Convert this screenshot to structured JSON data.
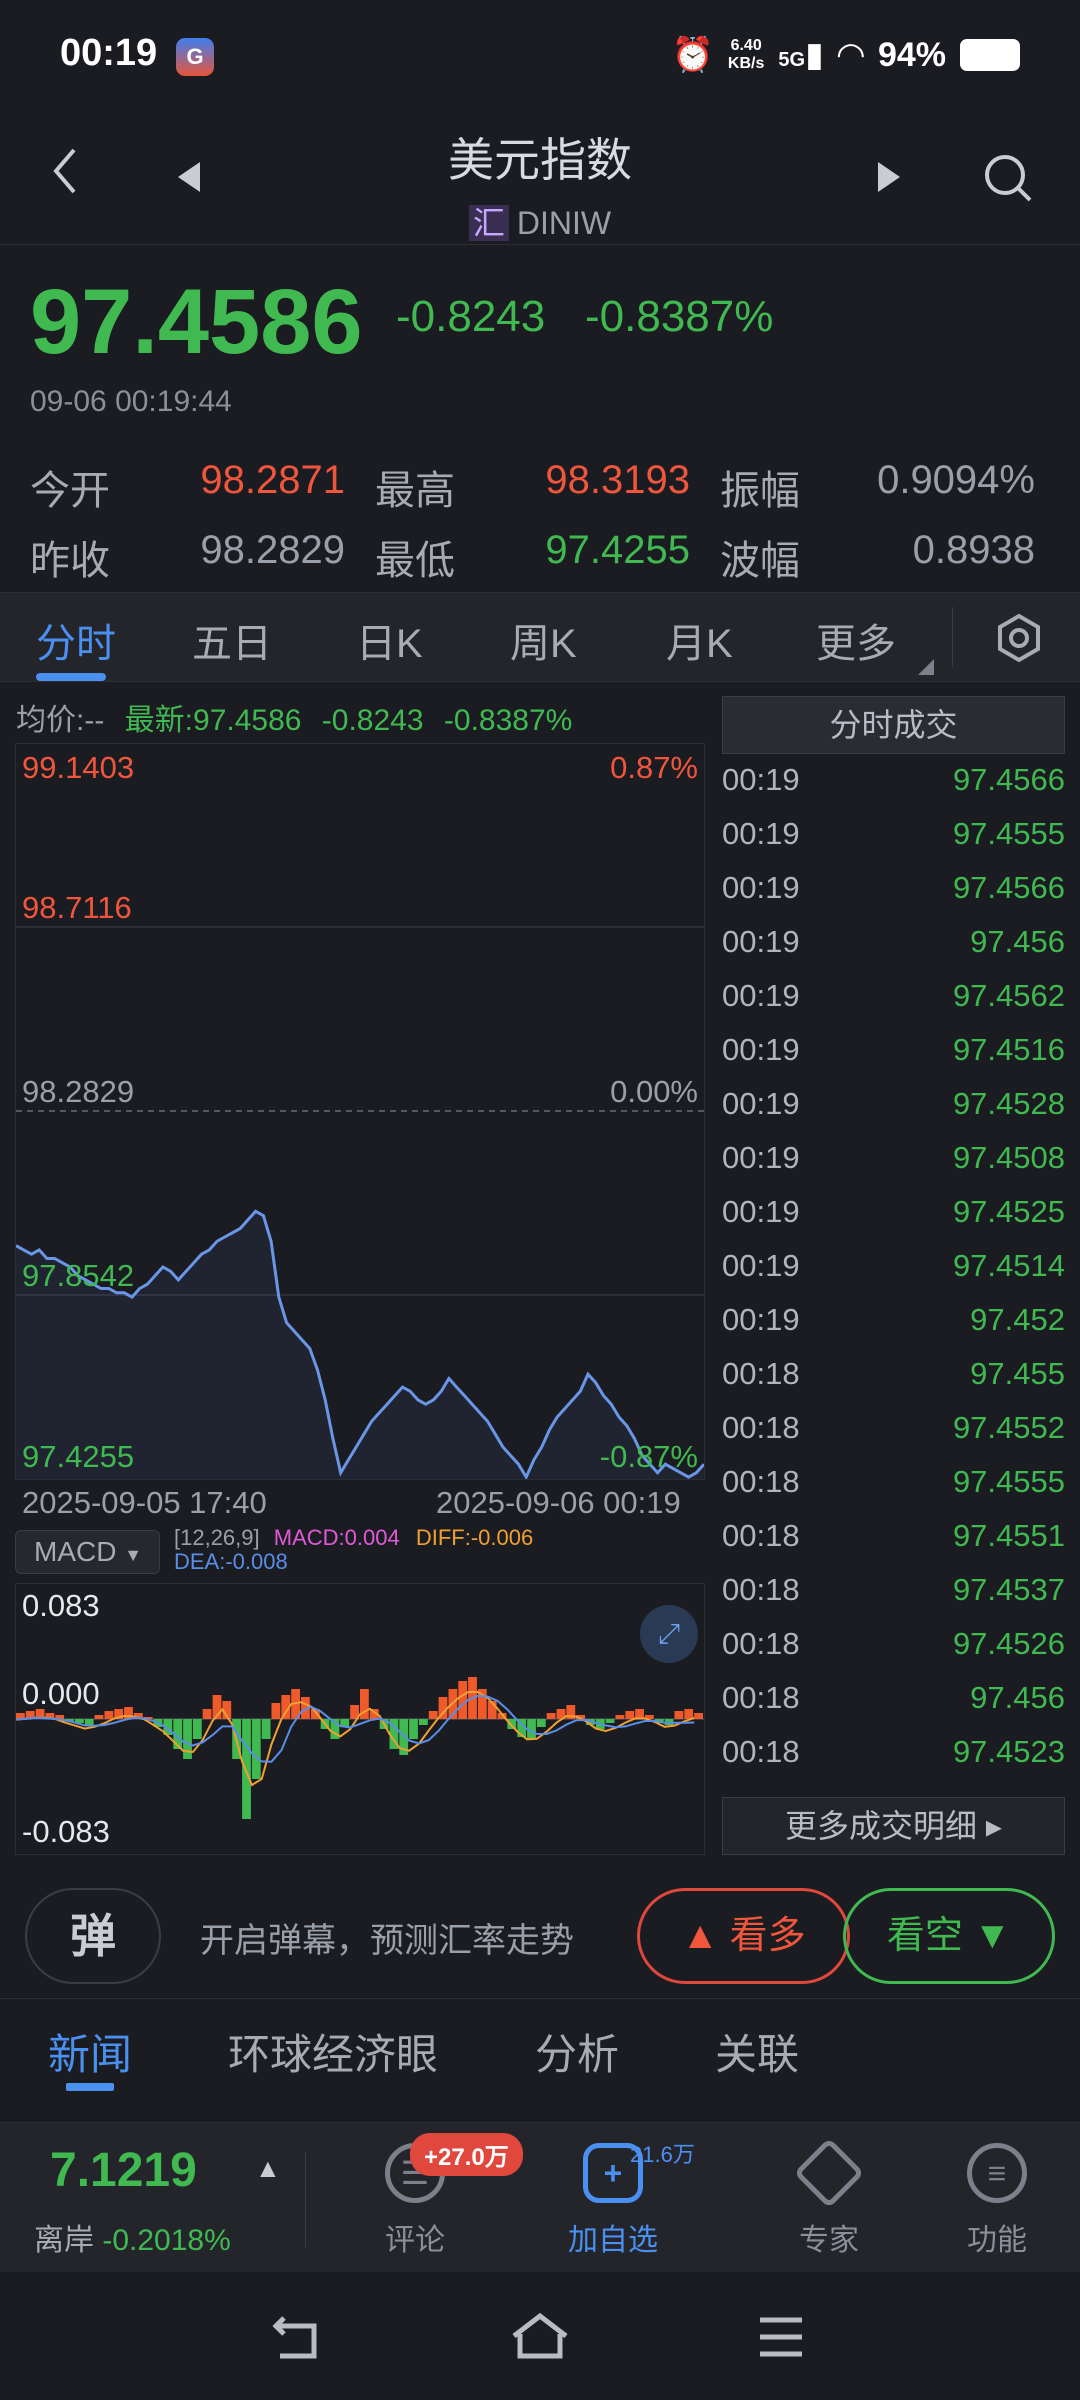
{
  "status_bar": {
    "time": "00:19",
    "app_badge": "G",
    "alarm_icon": "alarm-icon",
    "net_speed": "6.40",
    "net_unit": "KB/s",
    "net_type": "5G",
    "battery": "94%"
  },
  "header": {
    "title": "美元指数",
    "market_tag": "汇",
    "code": "DINIW"
  },
  "quote": {
    "price": "97.4586",
    "change": "-0.8243",
    "change_pct": "-0.8387%",
    "time": "09-06 00:19:44",
    "stats": [
      {
        "label": "今开",
        "value": "98.2871",
        "tone": "red"
      },
      {
        "label": "最高",
        "value": "98.3193",
        "tone": "red"
      },
      {
        "label": "振幅",
        "value": "0.9094%",
        "tone": "gray"
      },
      {
        "label": "昨收",
        "value": "98.2829",
        "tone": "gray"
      },
      {
        "label": "最低",
        "value": "97.4255",
        "tone": "green"
      },
      {
        "label": "波幅",
        "value": "0.8938",
        "tone": "gray"
      }
    ]
  },
  "chart_tabs": [
    "分时",
    "五日",
    "日K",
    "周K",
    "月K",
    "更多"
  ],
  "chart_info": {
    "avg_label": "均价:--",
    "latest": "最新:97.4586",
    "change": "-0.8243",
    "change_pct": "-0.8387%"
  },
  "chart_data": [
    {
      "type": "line",
      "y_ticks_left": [
        "99.1403",
        "98.7116",
        "98.2829",
        "97.8542",
        "97.4255"
      ],
      "y_ticks_right": [
        "0.87%",
        "0.00%",
        "-0.87%"
      ],
      "ylim": [
        97.4255,
        99.1403
      ],
      "baseline": 98.2829,
      "x_start_label": "2025-09-05 17:40",
      "x_end_label": "2025-09-06 00:19",
      "series": [
        {
          "values": [
            97.97,
            97.96,
            97.95,
            97.96,
            97.94,
            97.94,
            97.93,
            97.92,
            97.9,
            97.89,
            97.88,
            97.87,
            97.87,
            97.86,
            97.86,
            97.85,
            97.87,
            97.88,
            97.9,
            97.92,
            97.91,
            97.89,
            97.91,
            97.93,
            97.95,
            97.96,
            97.98,
            97.99,
            98.0,
            98.01,
            98.03,
            98.05,
            98.04,
            97.98,
            97.85,
            97.79,
            97.77,
            97.75,
            97.73,
            97.68,
            97.61,
            97.52,
            97.44,
            97.47,
            97.5,
            97.53,
            97.56,
            97.58,
            97.6,
            97.62,
            97.64,
            97.63,
            97.61,
            97.6,
            97.61,
            97.63,
            97.66,
            97.64,
            97.62,
            97.6,
            97.58,
            97.56,
            97.53,
            97.5,
            97.48,
            97.46,
            97.43,
            97.47,
            97.5,
            97.54,
            97.57,
            97.59,
            97.61,
            97.63,
            97.67,
            97.65,
            97.62,
            97.6,
            97.57,
            97.55,
            97.52,
            97.48,
            97.46,
            97.44,
            97.46,
            97.45,
            97.44,
            97.43,
            97.44,
            97.46
          ]
        }
      ]
    },
    {
      "type": "bar",
      "title": "MACD",
      "params": "[12,26,9]",
      "macd": "MACD:0.004",
      "diff": "DIFF:-0.006",
      "dea": "DEA:-0.008",
      "y_ticks": [
        "0.083",
        "0.000",
        "-0.083"
      ],
      "ylim": [
        -0.083,
        0.083
      ]
    }
  ],
  "trades": {
    "title": "分时成交",
    "rows": [
      {
        "time": "00:19",
        "price": "97.4566"
      },
      {
        "time": "00:19",
        "price": "97.4555"
      },
      {
        "time": "00:19",
        "price": "97.4566"
      },
      {
        "time": "00:19",
        "price": "97.456"
      },
      {
        "time": "00:19",
        "price": "97.4562"
      },
      {
        "time": "00:19",
        "price": "97.4516"
      },
      {
        "time": "00:19",
        "price": "97.4528"
      },
      {
        "time": "00:19",
        "price": "97.4508"
      },
      {
        "time": "00:19",
        "price": "97.4525"
      },
      {
        "time": "00:19",
        "price": "97.4514"
      },
      {
        "time": "00:19",
        "price": "97.452"
      },
      {
        "time": "00:18",
        "price": "97.455"
      },
      {
        "time": "00:18",
        "price": "97.4552"
      },
      {
        "time": "00:18",
        "price": "97.4555"
      },
      {
        "time": "00:18",
        "price": "97.4551"
      },
      {
        "time": "00:18",
        "price": "97.4537"
      },
      {
        "time": "00:18",
        "price": "97.4526"
      },
      {
        "time": "00:18",
        "price": "97.456"
      },
      {
        "time": "00:18",
        "price": "97.4523"
      }
    ],
    "more_label": "更多成交明细 ▸"
  },
  "danmaku": {
    "btn": "弹",
    "text": "开启弹幕，预测汇率走势",
    "bull": "看多",
    "bear": "看空"
  },
  "news_tabs": [
    "新闻",
    "环球经济眼",
    "分析",
    "关联"
  ],
  "bottom_bar": {
    "cnh_price": "7.1219",
    "cnh_label": "离岸",
    "cnh_change": "-0.2018%",
    "comment_badge": "+27.0万",
    "fav_count": "21.6万",
    "nav": [
      {
        "label": "评论",
        "icon": "comment-icon"
      },
      {
        "label": "加自选",
        "icon": "add-favorite-icon"
      },
      {
        "label": "专家",
        "icon": "expert-icon"
      },
      {
        "label": "功能",
        "icon": "menu-icon"
      }
    ]
  }
}
